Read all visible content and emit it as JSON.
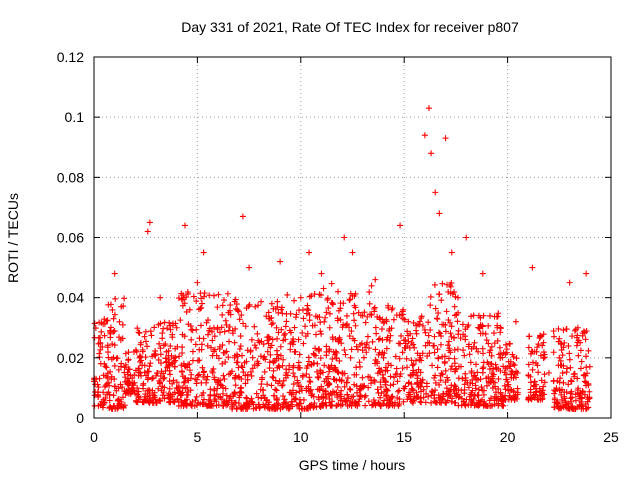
{
  "chart_data": {
    "type": "scatter",
    "title": "Day 331 of 2021, Rate Of TEC Index for receiver p807",
    "xlabel": "GPS time / hours",
    "ylabel": "ROTI / TECUs",
    "xlim": [
      0,
      25
    ],
    "ylim": [
      0,
      0.12
    ],
    "x_ticks": [
      0,
      5,
      10,
      15,
      20,
      25
    ],
    "y_ticks": [
      0,
      0.02,
      0.04,
      0.06,
      0.08,
      0.1,
      0.12
    ],
    "x_tick_labels": [
      "0",
      "5",
      "10",
      "15",
      "20",
      "25"
    ],
    "y_tick_labels": [
      "0",
      "0.02",
      "0.04",
      "0.06",
      "0.08",
      "0.1",
      "0.12"
    ],
    "grid": true,
    "marker": "plus",
    "color": "#ff0000",
    "series": [
      {
        "x": [
          0.1,
          0.3,
          0.5,
          0.8,
          1.0,
          1.2,
          1.5,
          2.2,
          2.6,
          2.7,
          3.0,
          3.2,
          3.5,
          3.8,
          4.0,
          4.4,
          4.7,
          5.0,
          5.3,
          5.5,
          5.8,
          6.2,
          6.5,
          6.8,
          7.2,
          7.5,
          7.9,
          8.2,
          8.6,
          9.0,
          9.3,
          9.7,
          10.0,
          10.4,
          10.8,
          11.0,
          11.4,
          11.8,
          12.1,
          12.5,
          12.8,
          13.2,
          13.6,
          14.0,
          14.4,
          14.8,
          15.2,
          15.6,
          16.0,
          16.2,
          16.3,
          16.5,
          16.7,
          17.0,
          17.3,
          17.6,
          18.0,
          18.4,
          18.8,
          19.2,
          19.5,
          20.0,
          20.4,
          21.2,
          21.4,
          22.0,
          22.5,
          23.0,
          23.4,
          23.8
        ],
        "y": [
          0.013,
          0.025,
          0.018,
          0.028,
          0.048,
          0.016,
          0.012,
          0.02,
          0.062,
          0.065,
          0.014,
          0.04,
          0.022,
          0.018,
          0.03,
          0.064,
          0.026,
          0.045,
          0.055,
          0.024,
          0.03,
          0.018,
          0.035,
          0.02,
          0.067,
          0.05,
          0.028,
          0.02,
          0.038,
          0.052,
          0.015,
          0.022,
          0.04,
          0.055,
          0.018,
          0.048,
          0.03,
          0.042,
          0.06,
          0.055,
          0.035,
          0.025,
          0.046,
          0.02,
          0.036,
          0.064,
          0.032,
          0.028,
          0.094,
          0.103,
          0.088,
          0.075,
          0.068,
          0.093,
          0.055,
          0.04,
          0.06,
          0.025,
          0.048,
          0.018,
          0.03,
          0.012,
          0.032,
          0.05,
          0.022,
          0.015,
          0.02,
          0.045,
          0.03,
          0.048
        ]
      }
    ],
    "density_envelope": [
      {
        "t0": 0.0,
        "t1": 0.4,
        "lo": 0.004,
        "hi": 0.033
      },
      {
        "t0": 0.4,
        "t1": 1.5,
        "lo": 0.003,
        "hi": 0.04
      },
      {
        "t0": 1.5,
        "t1": 2.0,
        "lo": 0.008,
        "hi": 0.022
      },
      {
        "t0": 2.0,
        "t1": 2.9,
        "lo": 0.005,
        "hi": 0.03
      },
      {
        "t0": 2.9,
        "t1": 4.0,
        "lo": 0.005,
        "hi": 0.032
      },
      {
        "t0": 4.0,
        "t1": 6.5,
        "lo": 0.004,
        "hi": 0.042
      },
      {
        "t0": 6.5,
        "t1": 9.0,
        "lo": 0.003,
        "hi": 0.04
      },
      {
        "t0": 9.0,
        "t1": 11.0,
        "lo": 0.003,
        "hi": 0.042
      },
      {
        "t0": 11.0,
        "t1": 13.5,
        "lo": 0.004,
        "hi": 0.045
      },
      {
        "t0": 13.5,
        "t1": 15.0,
        "lo": 0.004,
        "hi": 0.038
      },
      {
        "t0": 15.0,
        "t1": 16.0,
        "lo": 0.005,
        "hi": 0.035
      },
      {
        "t0": 16.0,
        "t1": 17.5,
        "lo": 0.005,
        "hi": 0.045
      },
      {
        "t0": 17.5,
        "t1": 19.8,
        "lo": 0.004,
        "hi": 0.035
      },
      {
        "t0": 19.8,
        "t1": 20.5,
        "lo": 0.006,
        "hi": 0.025
      },
      {
        "t0": 21.0,
        "t1": 21.8,
        "lo": 0.006,
        "hi": 0.028
      },
      {
        "t0": 22.2,
        "t1": 24.0,
        "lo": 0.003,
        "hi": 0.03
      }
    ]
  }
}
